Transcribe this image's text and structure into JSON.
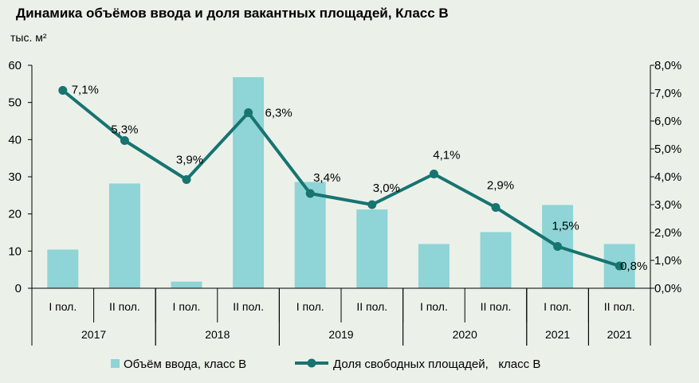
{
  "chart_data": {
    "type": "bar+line",
    "title": "Динамика объёмов ввода и доля вакантных площадей, Класс В",
    "y_left_unit": "тыс. м²",
    "y_left_lim": [
      0,
      60
    ],
    "y_left_ticks": [
      "0",
      "10",
      "20",
      "30",
      "40",
      "50",
      "60"
    ],
    "y_right_lim": [
      0,
      8
    ],
    "y_right_ticks": [
      "0,0%",
      "1,0%",
      "2,0%",
      "3,0%",
      "4,0%",
      "5,0%",
      "6,0%",
      "7,0%",
      "8,0%"
    ],
    "categories": [
      "I пол.",
      "II пол.",
      "I пол.",
      "II пол.",
      "I пол.",
      "II пол.",
      "I пол.",
      "II пол.",
      "I пол.",
      "II пол."
    ],
    "years": [
      {
        "label": "2017",
        "span": [
          0,
          1
        ]
      },
      {
        "label": "2018",
        "span": [
          2,
          3
        ]
      },
      {
        "label": "2019",
        "span": [
          4,
          5
        ]
      },
      {
        "label": "2020",
        "span": [
          6,
          7
        ]
      },
      {
        "label": "2021",
        "span": [
          8,
          8
        ]
      },
      {
        "label": "2021",
        "span": [
          9,
          9
        ]
      }
    ],
    "bar_series": {
      "name": "Объём ввода, класс В",
      "color": "#8fd4d6",
      "values": [
        10.4,
        28.2,
        1.8,
        56.8,
        28.6,
        21.2,
        11.9,
        15.1,
        22.4,
        11.9
      ]
    },
    "line_series": {
      "name": "Доля свободных площадей,   класс В",
      "color": "#177470",
      "values": [
        7.1,
        5.3,
        3.9,
        6.3,
        3.4,
        3.0,
        4.1,
        2.9,
        1.5,
        0.8
      ],
      "labels": [
        "7,1%",
        "5,3%",
        "3,9%",
        "6,3%",
        "3,4%",
        "3,0%",
        "4,1%",
        "2,9%",
        "1,5%",
        "0,8%"
      ]
    },
    "grid": false,
    "legend_position": "bottom"
  }
}
